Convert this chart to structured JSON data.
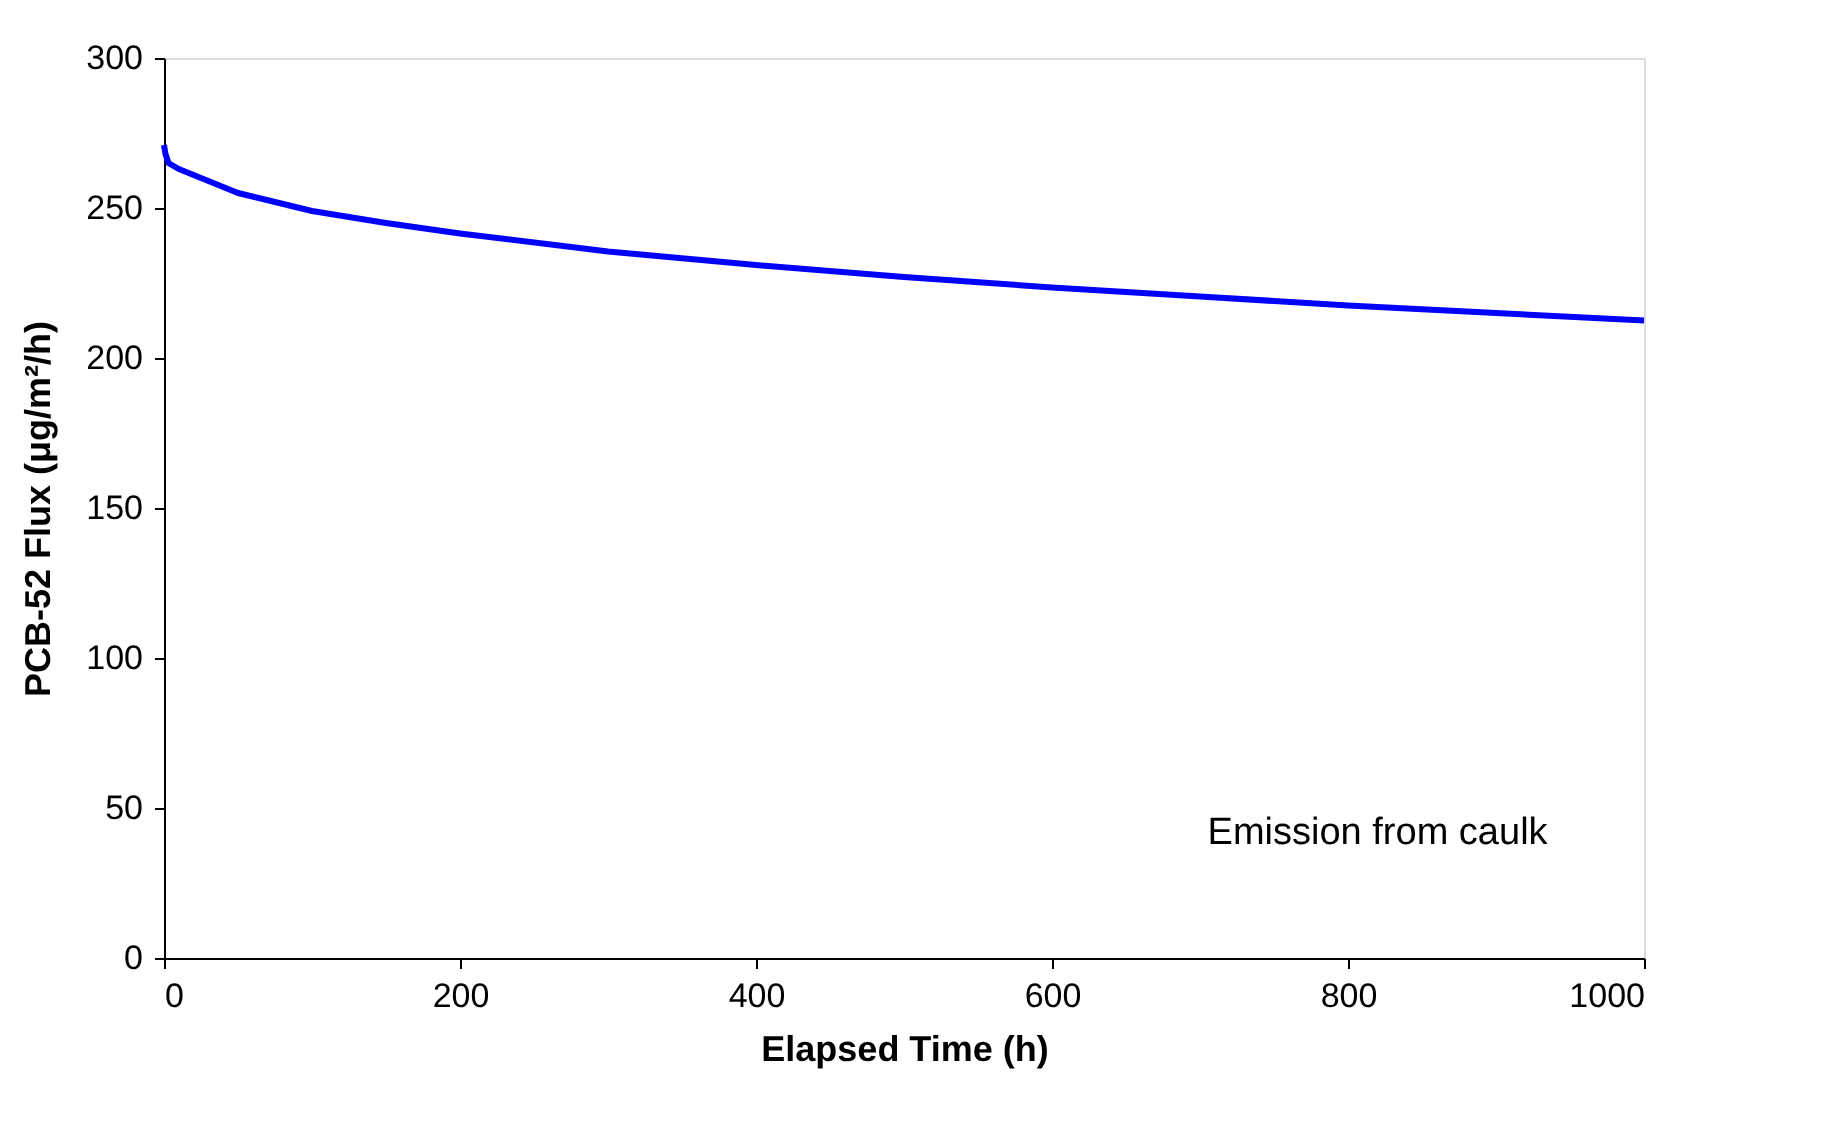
{
  "chart_data": {
    "type": "line",
    "xlabel": "Elapsed Time (h)",
    "ylabel": "PCB-52 Flux  (μg/m²/h)",
    "annotations": [
      "Emission from caulk"
    ],
    "x": [
      0,
      1,
      3,
      10,
      25,
      50,
      100,
      150,
      200,
      300,
      400,
      500,
      600,
      700,
      800,
      900,
      1000
    ],
    "series": [
      {
        "color": "#0000ff",
        "values": [
          271,
          268,
          265,
          263,
          260,
          255,
          249,
          245,
          241.5,
          235.5,
          231,
          227,
          223.5,
          220.5,
          217.5,
          215,
          212.5
        ]
      }
    ],
    "xlim": [
      0,
      1000
    ],
    "xticks": [
      0,
      200,
      400,
      600,
      800,
      1000
    ],
    "ylim": [
      0,
      300
    ],
    "yticks": [
      0,
      50,
      100,
      150,
      200,
      250,
      300
    ],
    "grid": false,
    "legend": false,
    "marker": "none",
    "line_style": "solid"
  }
}
